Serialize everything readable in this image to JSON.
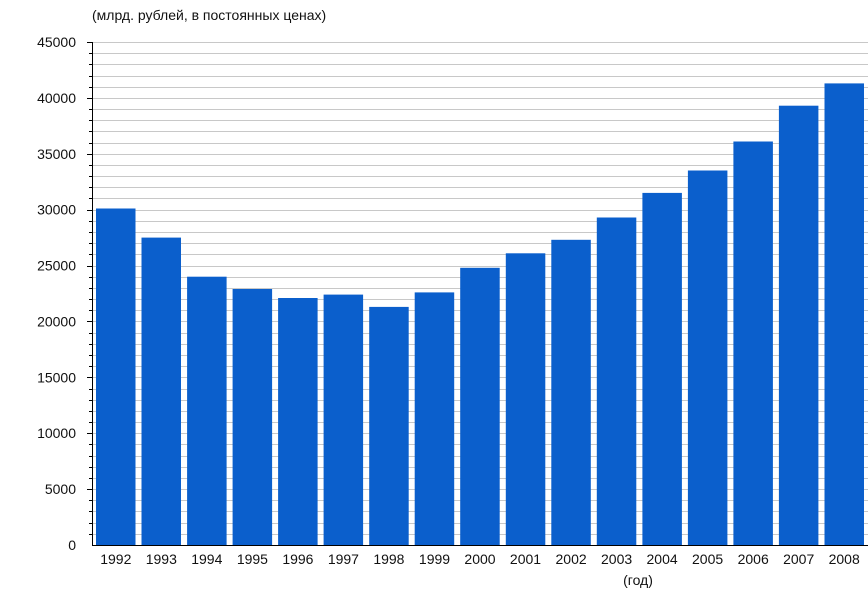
{
  "chart_data": {
    "type": "bar",
    "title": "",
    "ylabel": "(млрд. рублей, в постоянных ценах)",
    "xlabel": "(год)",
    "categories": [
      "1992",
      "1993",
      "1994",
      "1995",
      "1996",
      "1997",
      "1998",
      "1999",
      "2000",
      "2001",
      "2002",
      "2003",
      "2004",
      "2005",
      "2006",
      "2007",
      "2008"
    ],
    "series": [
      {
        "values": [
          30100,
          27500,
          24000,
          22900,
          22100,
          22400,
          21300,
          22600,
          24800,
          26100,
          27300,
          29300,
          31500,
          33500,
          36100,
          39300,
          41300
        ]
      }
    ],
    "ylim": [
      0,
      45000
    ],
    "yticks": [
      "0",
      "5000",
      "10000",
      "15000",
      "20000",
      "25000",
      "30000",
      "35000",
      "40000",
      "45000"
    ],
    "grid": true,
    "legend": "none",
    "colors": {
      "bar": "#0b5fcc",
      "grid": "#c8c8c8",
      "axis": "#000000"
    }
  }
}
